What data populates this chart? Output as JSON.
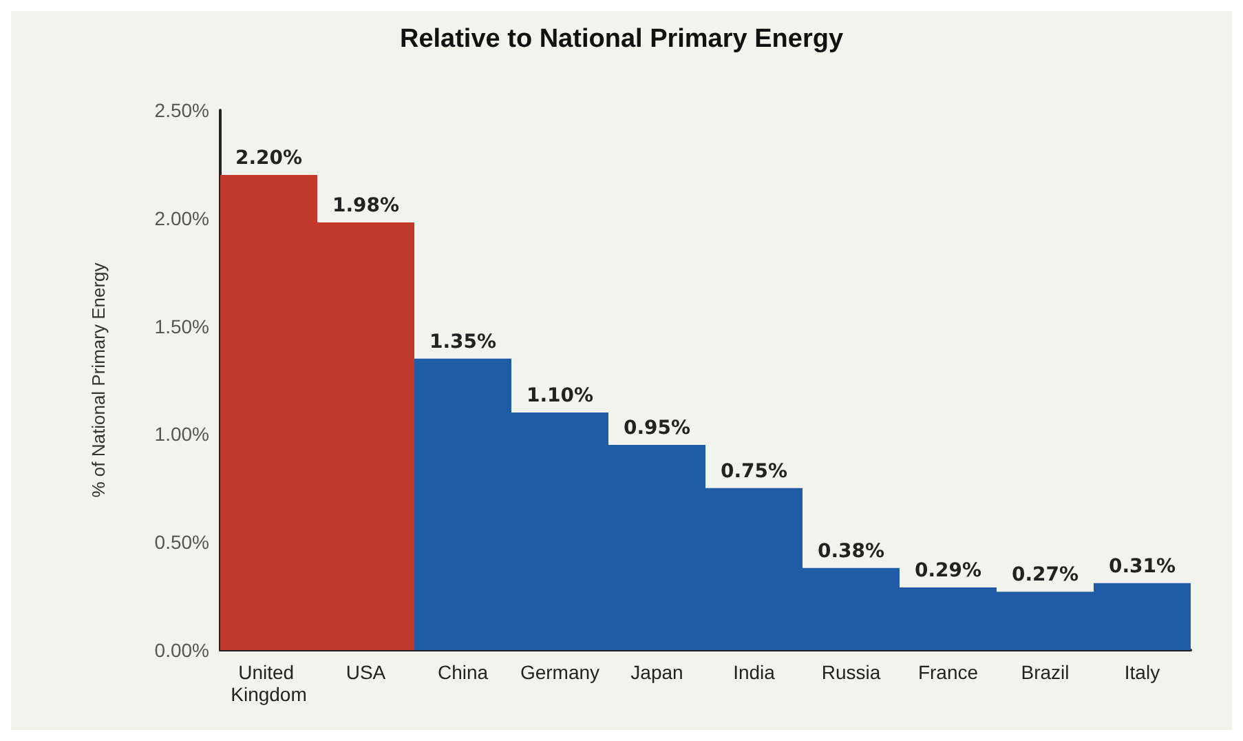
{
  "chart_data": {
    "type": "bar",
    "title": "Relative to National Primary Energy",
    "ylabel": "% of National Primary Energy",
    "categories": [
      "United Kingdom",
      "USA",
      "China",
      "Germany",
      "Japan",
      "India",
      "Russia",
      "France",
      "Brazil",
      "Italy"
    ],
    "values": [
      2.2,
      1.98,
      1.35,
      1.1,
      0.95,
      0.75,
      0.38,
      0.29,
      0.27,
      0.31
    ],
    "colors": [
      "#c0392b",
      "#c0392b",
      "#1f5ca5",
      "#1f5ca5",
      "#1f5ca5",
      "#1f5ca5",
      "#1f5ca5",
      "#1f5ca5",
      "#1f5ca5",
      "#1f5ca5"
    ],
    "value_labels": [
      "2.20%",
      "1.98%",
      "1.35%",
      "1.10%",
      "0.95%",
      "0.75%",
      "0.38%",
      "0.29%",
      "0.27%",
      "0.31%"
    ],
    "ylim": [
      0,
      2.5
    ],
    "yticks": [
      {
        "value": 0,
        "label": "0.00%"
      },
      {
        "value": 0.5,
        "label": "0.50%"
      },
      {
        "value": 1,
        "label": "1.00%"
      },
      {
        "value": 1.5,
        "label": "1.50%"
      },
      {
        "value": 2,
        "label": "2.00%"
      },
      {
        "value": 2.5,
        "label": "2.50%"
      }
    ],
    "grid": false
  }
}
